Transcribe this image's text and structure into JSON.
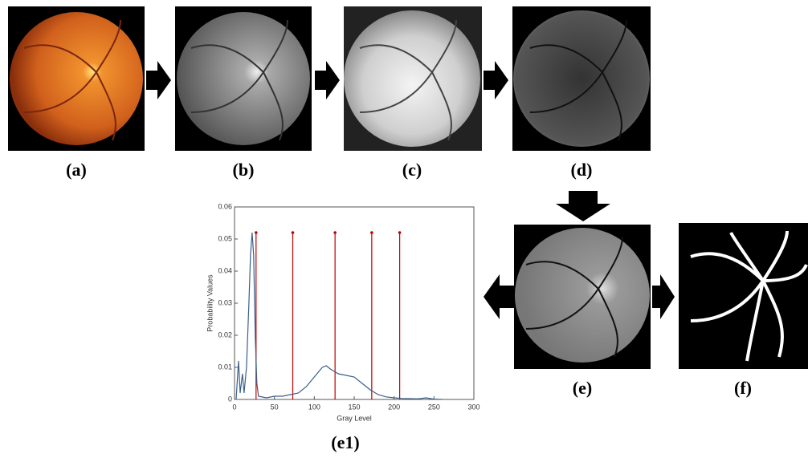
{
  "panels": {
    "a": "(a)",
    "b": "(b)",
    "c": "(c)",
    "d": "(d)",
    "e": "(e)",
    "f": "(f)",
    "e1": "(e1)"
  },
  "chart_data": {
    "type": "line",
    "xlabel": "Gray Level",
    "ylabel": "Probability Values",
    "xlim": [
      0,
      300
    ],
    "ylim": [
      0,
      0.06
    ],
    "xticks": [
      0,
      50,
      100,
      150,
      200,
      250,
      300
    ],
    "yticks": [
      0,
      0.01,
      0.02,
      0.03,
      0.04,
      0.05,
      0.06
    ],
    "x": [
      2,
      5,
      7,
      10,
      12,
      15,
      18,
      20,
      22,
      24,
      26,
      28,
      30,
      40,
      50,
      60,
      70,
      80,
      90,
      100,
      110,
      115,
      120,
      130,
      140,
      150,
      160,
      170,
      180,
      190,
      200,
      210,
      230,
      240,
      250,
      260
    ],
    "series": [
      {
        "color": "#3b5f8a",
        "values": [
          0,
          0.012,
          0.002,
          0.008,
          0.002,
          0.01,
          0.03,
          0.045,
          0.052,
          0.045,
          0.02,
          0.005,
          0.001,
          0.0005,
          0.001,
          0.001,
          0.0015,
          0.002,
          0.004,
          0.007,
          0.01,
          0.0105,
          0.0095,
          0.008,
          0.0075,
          0.007,
          0.005,
          0.003,
          0.0015,
          0.0008,
          0.0005,
          0.0003,
          0.0002,
          0.0005,
          0.0001,
          0
        ]
      }
    ],
    "thresholds": {
      "color": "#c00000",
      "x": [
        27,
        73,
        126,
        172,
        207
      ],
      "values": [
        0.052,
        0.052,
        0.052,
        0.052,
        0.052
      ]
    }
  }
}
